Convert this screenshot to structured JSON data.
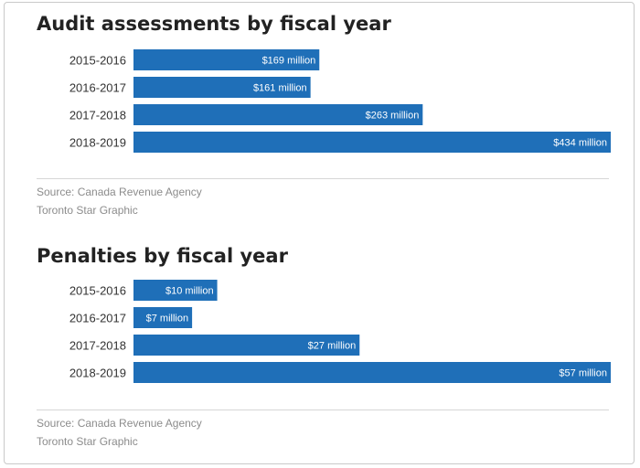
{
  "chart_data": [
    {
      "type": "bar",
      "orientation": "horizontal",
      "title": "Audit assessments by fiscal year",
      "categories": [
        "2015-2016",
        "2016-2017",
        "2017-2018",
        "2018-2019"
      ],
      "values": [
        169,
        161,
        263,
        434
      ],
      "unit": "million",
      "value_labels": [
        "$169 million",
        "$161 million",
        "$263 million",
        "$434 million"
      ],
      "bar_color": "#1f6fb8",
      "xlim": [
        0,
        434
      ],
      "grid": false,
      "source": "Source: Canada Revenue Agency",
      "credit": "Toronto Star Graphic"
    },
    {
      "type": "bar",
      "orientation": "horizontal",
      "title": "Penalties by fiscal year",
      "categories": [
        "2015-2016",
        "2016-2017",
        "2017-2018",
        "2018-2019"
      ],
      "values": [
        10,
        7,
        27,
        57
      ],
      "unit": "million",
      "value_labels": [
        "$10 million",
        "$7 million",
        "$27 million",
        "$57 million"
      ],
      "bar_color": "#1f6fb8",
      "xlim": [
        0,
        57
      ],
      "grid": false,
      "source": "Source: Canada Revenue Agency",
      "credit": "Toronto Star Graphic"
    }
  ]
}
